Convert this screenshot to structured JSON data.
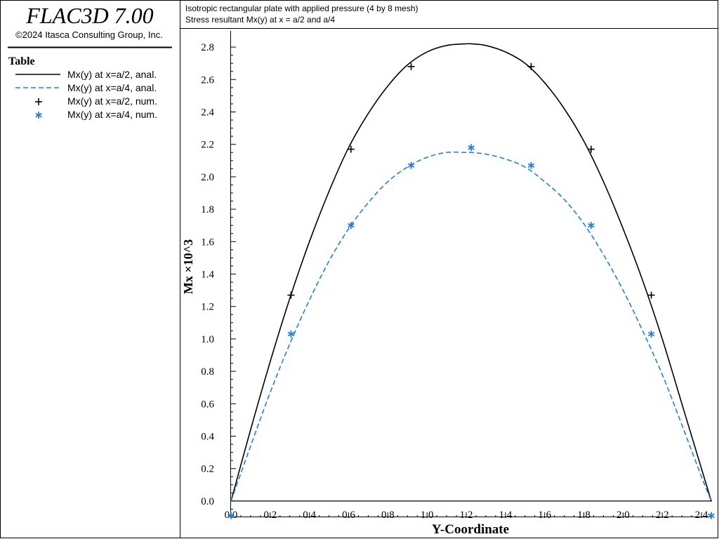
{
  "app": {
    "title": "FLAC3D 7.00",
    "copyright": "©2024 Itasca Consulting Group, Inc."
  },
  "legend": {
    "heading": "Table",
    "items": [
      {
        "label": "Mx(y) at x=a/2, anal.",
        "style": "solid-line",
        "color": "#000000"
      },
      {
        "label": "Mx(y) at x=a/4, anal.",
        "style": "dashed-line",
        "color": "#1e7fd8"
      },
      {
        "label": "Mx(y) at x=a/2, num.",
        "style": "plus-marker",
        "color": "#000000"
      },
      {
        "label": "Mx(y) at x=a/4, num.",
        "style": "star-marker",
        "color": "#1e7fd8"
      }
    ]
  },
  "header": {
    "line1": "Isotropic rectangular plate with applied pressure (4 by 8 mesh)",
    "line2": "Stress resultant Mx(y) at x = a/2 and a/4"
  },
  "chart_data": {
    "type": "line",
    "xlabel": "Y-Coordinate",
    "ylabel": "Mx ×10^3",
    "xlim": [
      0,
      2.45
    ],
    "ylim": [
      -0.1,
      2.9
    ],
    "xticks": [
      "0.0",
      "0.2",
      "0.4",
      "0.6",
      "0.8",
      "1.0",
      "1.2",
      "1.4",
      "1.6",
      "1.8",
      "2.0",
      "2.2",
      "2.4"
    ],
    "yticks": [
      "0.0",
      "0.2",
      "0.4",
      "0.6",
      "0.8",
      "1.0",
      "1.2",
      "1.4",
      "1.6",
      "1.8",
      "2.0",
      "2.2",
      "2.4",
      "2.6",
      "2.8"
    ],
    "grid": false,
    "series": [
      {
        "name": "Mx(y) at x=a/2, anal.",
        "kind": "line",
        "style": "solid",
        "color": "#000000",
        "x": [
          0.0,
          0.1,
          0.2,
          0.3,
          0.4,
          0.5,
          0.6,
          0.7,
          0.8,
          0.9,
          1.0,
          1.1,
          1.2,
          1.225,
          1.3,
          1.4,
          1.5,
          1.6,
          1.7,
          1.8,
          1.9,
          2.0,
          2.1,
          2.2,
          2.3,
          2.4,
          2.45
        ],
        "y": [
          0.0,
          0.44,
          0.86,
          1.25,
          1.6,
          1.91,
          2.18,
          2.39,
          2.56,
          2.69,
          2.77,
          2.81,
          2.82,
          2.82,
          2.81,
          2.77,
          2.7,
          2.58,
          2.42,
          2.22,
          1.97,
          1.68,
          1.36,
          1.0,
          0.6,
          0.2,
          0.0
        ]
      },
      {
        "name": "Mx(y) at x=a/4, anal.",
        "kind": "line",
        "style": "dashed",
        "color": "#1e7fd8",
        "x": [
          0.0,
          0.1,
          0.2,
          0.3,
          0.4,
          0.5,
          0.6,
          0.7,
          0.8,
          0.9,
          1.0,
          1.1,
          1.2,
          1.225,
          1.3,
          1.4,
          1.5,
          1.6,
          1.7,
          1.8,
          1.9,
          2.0,
          2.1,
          2.2,
          2.3,
          2.4,
          2.45
        ],
        "y": [
          0.0,
          0.34,
          0.67,
          0.97,
          1.24,
          1.48,
          1.68,
          1.84,
          1.97,
          2.06,
          2.12,
          2.15,
          2.15,
          2.15,
          2.14,
          2.11,
          2.06,
          1.97,
          1.86,
          1.71,
          1.52,
          1.3,
          1.05,
          0.78,
          0.47,
          0.15,
          0.0
        ]
      },
      {
        "name": "Mx(y) at x=a/2, num.",
        "kind": "marker",
        "marker": "plus",
        "color": "#000000",
        "x": [
          0.306,
          0.612,
          0.919,
          1.531,
          1.837,
          2.144
        ],
        "y": [
          1.27,
          2.17,
          2.68,
          2.68,
          2.17,
          1.27
        ]
      },
      {
        "name": "Mx(y) at x=a/4, num.",
        "kind": "marker",
        "marker": "star",
        "color": "#1e7fd8",
        "x": [
          0.0,
          0.306,
          0.612,
          0.919,
          1.225,
          1.531,
          1.837,
          2.144,
          2.45
        ],
        "y": [
          -0.09,
          1.03,
          1.7,
          2.07,
          2.18,
          2.07,
          1.7,
          1.03,
          -0.09
        ]
      }
    ]
  }
}
